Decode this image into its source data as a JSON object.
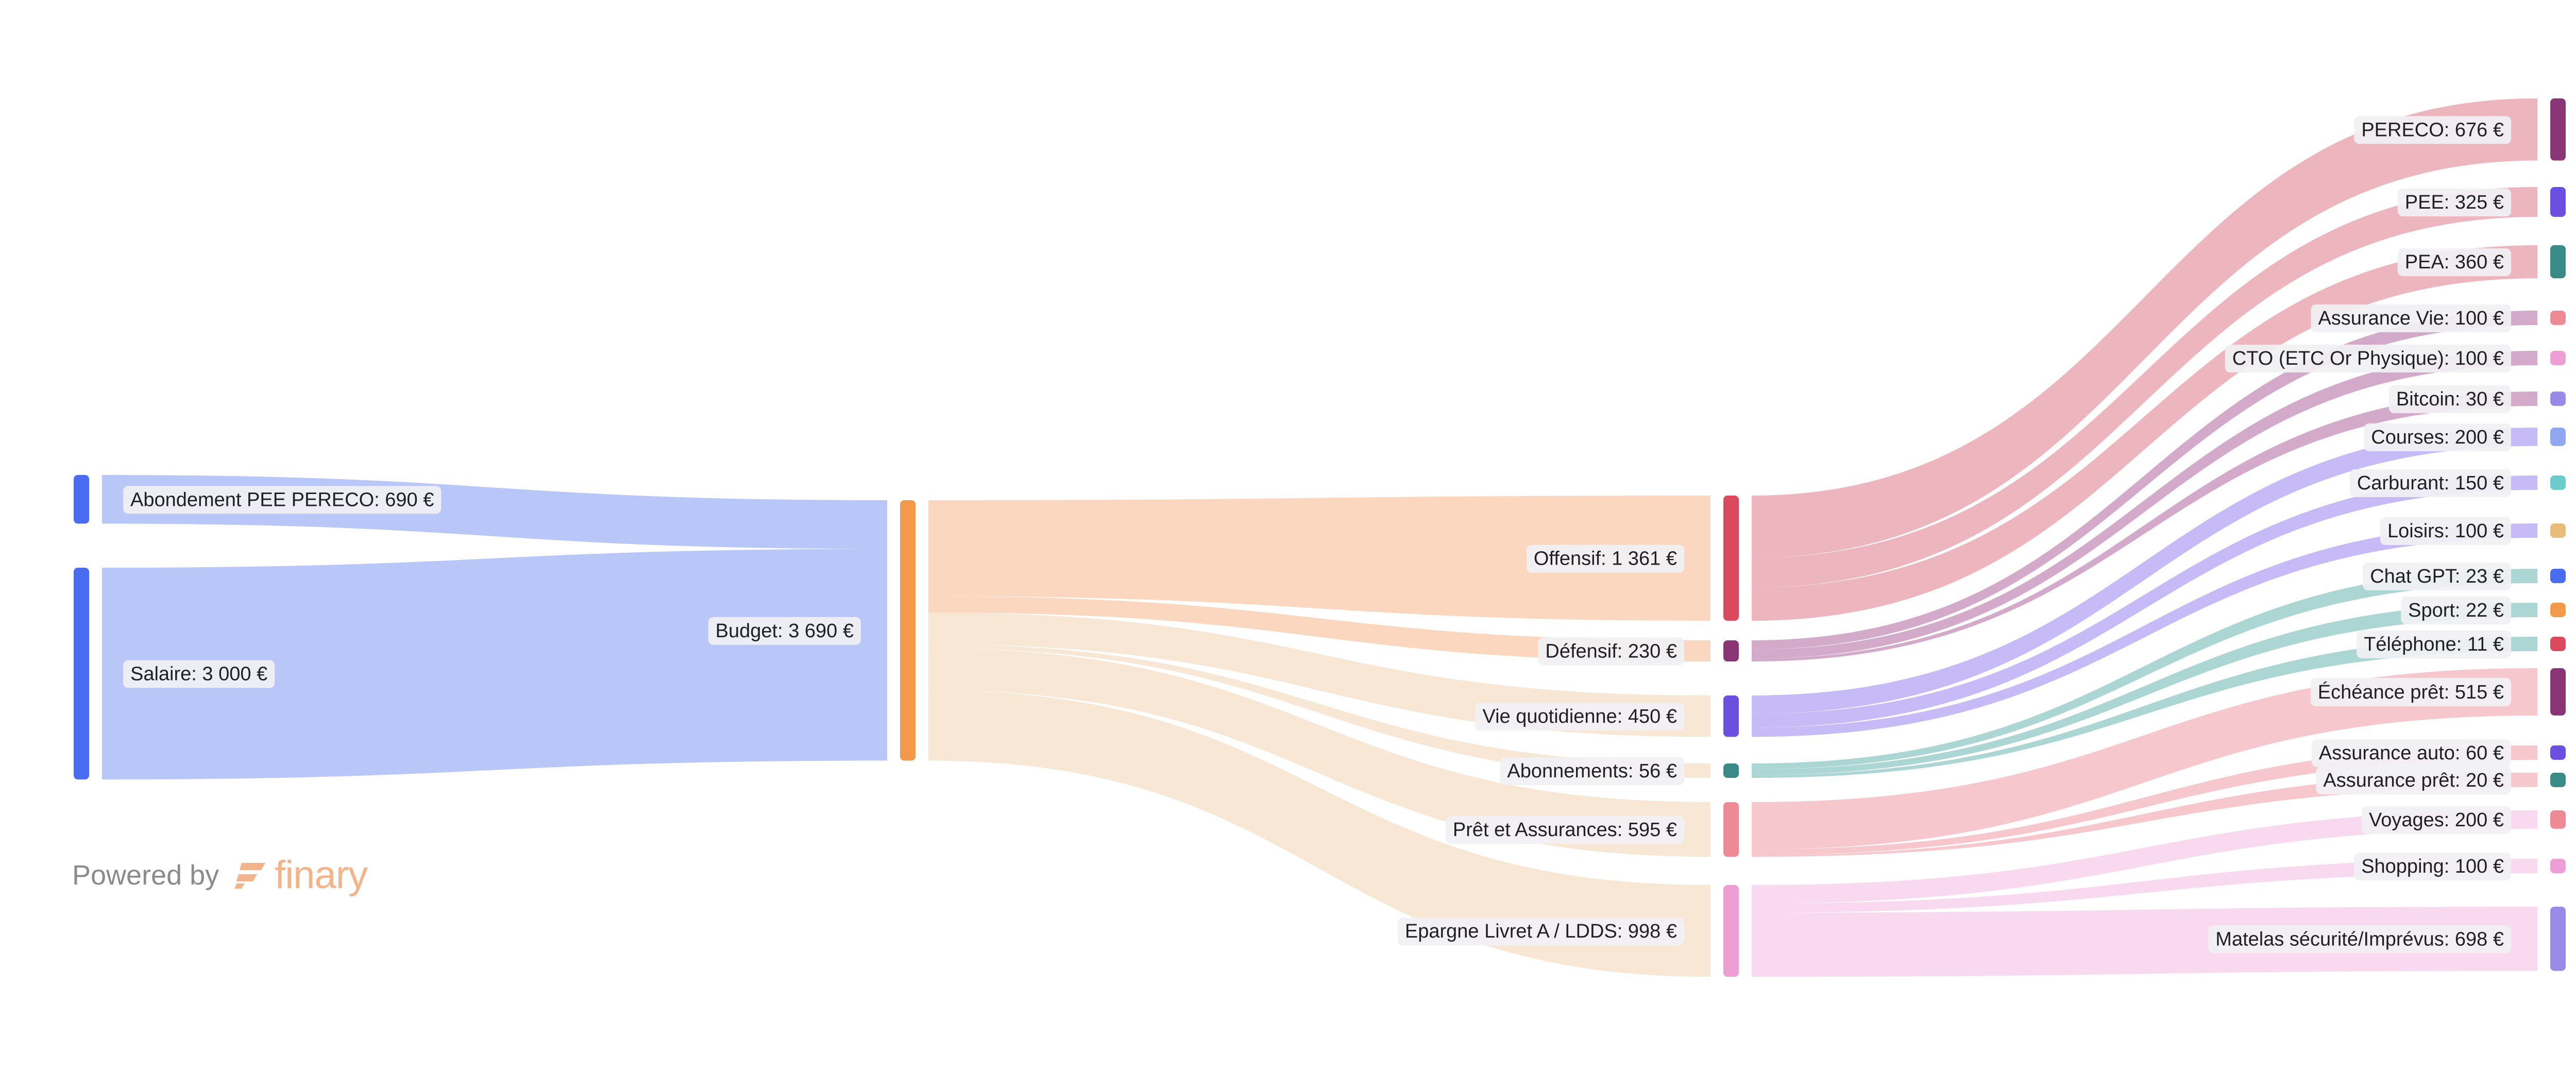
{
  "chart_data": {
    "type": "sankey",
    "currency": "€",
    "nodes": [
      {
        "id": "abondement",
        "label": "Abondement PEE PERECO: 690 €",
        "value": 690,
        "color": "#4a6cf0"
      },
      {
        "id": "salaire",
        "label": "Salaire: 3 000 €",
        "value": 3000,
        "color": "#4a6cf0"
      },
      {
        "id": "budget",
        "label": "Budget: 3 690 €",
        "value": 3690,
        "color": "#f2994a"
      },
      {
        "id": "offensif",
        "label": "Offensif: 1 361 €",
        "value": 1361,
        "color": "#d94a5e"
      },
      {
        "id": "defensif",
        "label": "Défensif: 230 €",
        "value": 230,
        "color": "#8a3575"
      },
      {
        "id": "vie",
        "label": "Vie quotidienne: 450 €",
        "value": 450,
        "color": "#6b4fe0"
      },
      {
        "id": "abonnements",
        "label": "Abonnements: 56 €",
        "value": 56,
        "color": "#3a8a88"
      },
      {
        "id": "pret",
        "label": "Prêt et Assurances: 595 €",
        "value": 595,
        "color": "#ee8a96"
      },
      {
        "id": "epargne",
        "label": "Epargne Livret A / LDDS: 998 €",
        "value": 998,
        "color": "#ee9ed4"
      },
      {
        "id": "pereco",
        "label": "PERECO: 676 €",
        "value": 676,
        "color": "#8a3575"
      },
      {
        "id": "pee",
        "label": "PEE: 325 €",
        "value": 325,
        "color": "#6b4fe0"
      },
      {
        "id": "pea",
        "label": "PEA: 360 €",
        "value": 360,
        "color": "#3a8a88"
      },
      {
        "id": "assvie",
        "label": "Assurance Vie: 100 €",
        "value": 100,
        "color": "#ee8a96"
      },
      {
        "id": "cto",
        "label": "CTO (ETC Or Physique): 100 €",
        "value": 100,
        "color": "#ee9ed4"
      },
      {
        "id": "bitcoin",
        "label": "Bitcoin: 30 €",
        "value": 30,
        "color": "#9a8ae8"
      },
      {
        "id": "courses",
        "label": "Courses: 200 €",
        "value": 200,
        "color": "#8fa7f0"
      },
      {
        "id": "carburant",
        "label": "Carburant: 150 €",
        "value": 150,
        "color": "#6ccccc"
      },
      {
        "id": "loisirs",
        "label": "Loisirs: 100 €",
        "value": 100,
        "color": "#e8bc7a"
      },
      {
        "id": "chatgpt",
        "label": "Chat GPT: 23 €",
        "value": 23,
        "color": "#4a6cf0"
      },
      {
        "id": "sport",
        "label": "Sport: 22 €",
        "value": 22,
        "color": "#f2994a"
      },
      {
        "id": "telephone",
        "label": "Téléphone: 11 €",
        "value": 11,
        "color": "#d94a5e"
      },
      {
        "id": "echeance",
        "label": "Échéance prêt: 515 €",
        "value": 515,
        "color": "#8a3575"
      },
      {
        "id": "assauto",
        "label": "Assurance auto: 60 €",
        "value": 60,
        "color": "#6b4fe0"
      },
      {
        "id": "asspret",
        "label": "Assurance prêt: 20 €",
        "value": 20,
        "color": "#3a8a88"
      },
      {
        "id": "voyages",
        "label": "Voyages: 200 €",
        "value": 200,
        "color": "#ee8a96"
      },
      {
        "id": "shopping",
        "label": "Shopping: 100 €",
        "value": 100,
        "color": "#ee9ed4"
      },
      {
        "id": "matelas",
        "label": "Matelas sécurité/Imprévus: 698 €",
        "value": 698,
        "color": "#9a8ae8"
      }
    ],
    "links": [
      {
        "source": "abondement",
        "target": "budget",
        "value": 690
      },
      {
        "source": "salaire",
        "target": "budget",
        "value": 3000
      },
      {
        "source": "budget",
        "target": "offensif",
        "value": 1361
      },
      {
        "source": "budget",
        "target": "defensif",
        "value": 230
      },
      {
        "source": "budget",
        "target": "vie",
        "value": 450
      },
      {
        "source": "budget",
        "target": "abonnements",
        "value": 56
      },
      {
        "source": "budget",
        "target": "pret",
        "value": 595
      },
      {
        "source": "budget",
        "target": "epargne",
        "value": 998
      },
      {
        "source": "offensif",
        "target": "pereco",
        "value": 676
      },
      {
        "source": "offensif",
        "target": "pee",
        "value": 325
      },
      {
        "source": "offensif",
        "target": "pea",
        "value": 360
      },
      {
        "source": "defensif",
        "target": "assvie",
        "value": 100
      },
      {
        "source": "defensif",
        "target": "cto",
        "value": 100
      },
      {
        "source": "defensif",
        "target": "bitcoin",
        "value": 30
      },
      {
        "source": "vie",
        "target": "courses",
        "value": 200
      },
      {
        "source": "vie",
        "target": "carburant",
        "value": 150
      },
      {
        "source": "vie",
        "target": "loisirs",
        "value": 100
      },
      {
        "source": "abonnements",
        "target": "chatgpt",
        "value": 23
      },
      {
        "source": "abonnements",
        "target": "sport",
        "value": 22
      },
      {
        "source": "abonnements",
        "target": "telephone",
        "value": 11
      },
      {
        "source": "pret",
        "target": "echeance",
        "value": 515
      },
      {
        "source": "pret",
        "target": "assauto",
        "value": 60
      },
      {
        "source": "pret",
        "target": "asspret",
        "value": 20
      },
      {
        "source": "epargne",
        "target": "voyages",
        "value": 200
      },
      {
        "source": "epargne",
        "target": "shopping",
        "value": 100
      },
      {
        "source": "epargne",
        "target": "matelas",
        "value": 698
      }
    ],
    "link_colors": {
      "abondement": "#b4c4f7",
      "salaire": "#b4c4f7",
      "budget_offensif": "#fbd5bd",
      "budget_defensif": "#fbd5bd",
      "budget_other": "#f8e6d2",
      "offensif": "#ecb1ba",
      "defensif": "#d2a5c7",
      "vie": "#c3b7f6",
      "abonnements": "#a8d4d2",
      "pret": "#f7c4cb",
      "epargne": "#f9d7ef"
    }
  },
  "footer": {
    "powered_by": "Powered by",
    "brand": "finary",
    "brand_color": "#f2b48a"
  }
}
